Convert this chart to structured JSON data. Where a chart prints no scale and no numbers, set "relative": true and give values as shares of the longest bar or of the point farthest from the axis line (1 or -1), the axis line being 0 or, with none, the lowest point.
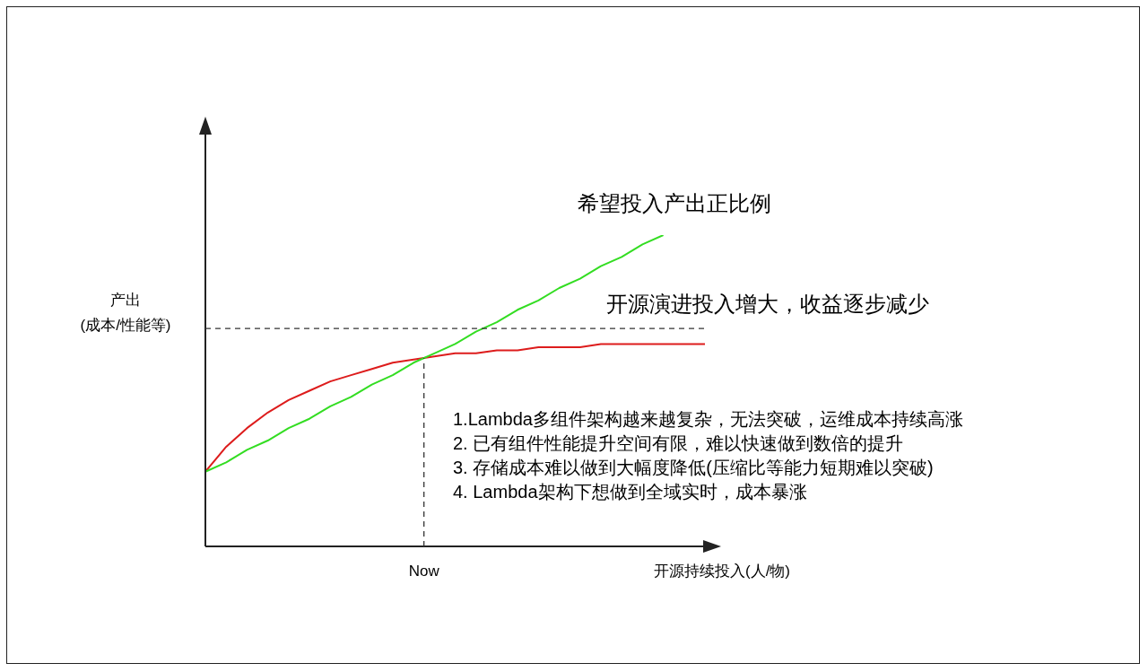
{
  "chart_data": {
    "type": "line",
    "relative": true,
    "xlabel": "开源持续投入(人/物)",
    "ylabel": "产出\n(成本/性能等)",
    "categories": [
      null,
      null,
      null,
      null,
      null,
      null,
      null,
      null,
      null,
      null,
      null,
      null,
      null,
      null,
      null,
      null,
      null,
      null,
      null,
      null,
      null,
      null,
      null,
      null,
      null
    ],
    "series": [
      {
        "name": "希望投入产出正比例",
        "color": "#33dd22",
        "values": [
          0.24,
          0.27,
          0.31,
          0.34,
          0.38,
          0.41,
          0.45,
          0.48,
          0.52,
          0.55,
          0.59,
          0.62,
          0.65,
          0.69,
          0.72,
          0.76,
          0.79,
          0.83,
          0.86,
          0.9,
          0.93,
          0.97,
          1.0,
          null,
          null
        ]
      },
      {
        "name": "开源演进投入增大，收益逐步减少",
        "color": "#dd1c1c",
        "values": [
          0.24,
          0.32,
          0.38,
          0.43,
          0.47,
          0.5,
          0.53,
          0.55,
          0.57,
          0.59,
          0.6,
          0.61,
          0.62,
          0.62,
          0.63,
          0.63,
          0.64,
          0.64,
          0.64,
          0.65,
          0.65,
          0.65,
          0.65,
          0.65,
          0.65
        ]
      }
    ],
    "ref_lines": [
      {
        "axis": "y",
        "value": 0.7,
        "line_style": "dashed",
        "color": "#333333"
      }
    ],
    "annotations": [
      "Now",
      "1.Lambda多组件架构越来越复杂，无法突破，运维成本持续高涨",
      "2. 已有组件性能提升空间有限，难以快速做到数倍的提升",
      "3. 存储成本难以做到大幅度降低(压缩比等能力短期难以突破)",
      "4. Lambda架构下想做到全域实时，成本暴涨"
    ],
    "legend": false,
    "grid": false,
    "marker": "none",
    "line_style": "solid"
  }
}
